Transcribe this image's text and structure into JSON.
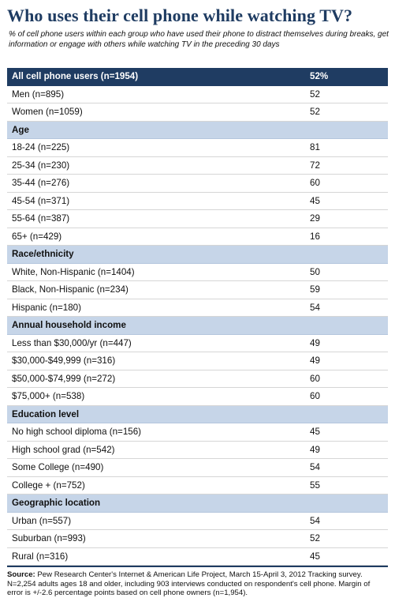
{
  "title": "Who uses their cell phone while watching TV?",
  "subtitle": "% of cell phone users within each group who have used their phone to distract themselves during breaks, get information or engage with others while watching TV in the preceding 30 days",
  "chart_data": {
    "type": "table",
    "rows": [
      {
        "kind": "total",
        "label": "All cell phone users (n=1954)",
        "value": "52%"
      },
      {
        "kind": "row",
        "label": "Men (n=895)",
        "value": "52"
      },
      {
        "kind": "row",
        "label": "Women (n=1059)",
        "value": "52"
      },
      {
        "kind": "section",
        "label": "Age",
        "value": ""
      },
      {
        "kind": "row",
        "label": "18-24 (n=225)",
        "value": "81"
      },
      {
        "kind": "row",
        "label": "25-34 (n=230)",
        "value": "72"
      },
      {
        "kind": "row",
        "label": "35-44 (n=276)",
        "value": "60"
      },
      {
        "kind": "row",
        "label": "45-54 (n=371)",
        "value": "45"
      },
      {
        "kind": "row",
        "label": "55-64 (n=387)",
        "value": "29"
      },
      {
        "kind": "row",
        "label": "65+ (n=429)",
        "value": "16"
      },
      {
        "kind": "section",
        "label": "Race/ethnicity",
        "value": ""
      },
      {
        "kind": "row",
        "label": "White, Non-Hispanic (n=1404)",
        "value": "50"
      },
      {
        "kind": "row",
        "label": "Black, Non-Hispanic (n=234)",
        "value": "59"
      },
      {
        "kind": "row",
        "label": "Hispanic (n=180)",
        "value": "54"
      },
      {
        "kind": "section",
        "label": "Annual household income",
        "value": ""
      },
      {
        "kind": "row",
        "label": "Less than $30,000/yr (n=447)",
        "value": "49"
      },
      {
        "kind": "row",
        "label": "$30,000-$49,999 (n=316)",
        "value": "49"
      },
      {
        "kind": "row",
        "label": "$50,000-$74,999 (n=272)",
        "value": "60"
      },
      {
        "kind": "row",
        "label": "$75,000+ (n=538)",
        "value": "60"
      },
      {
        "kind": "section",
        "label": "Education level",
        "value": ""
      },
      {
        "kind": "row",
        "label": "No high school diploma (n=156)",
        "value": "45"
      },
      {
        "kind": "row",
        "label": "High school grad (n=542)",
        "value": "49"
      },
      {
        "kind": "row",
        "label": "Some College (n=490)",
        "value": "54"
      },
      {
        "kind": "row",
        "label": "College + (n=752)",
        "value": "55"
      },
      {
        "kind": "section",
        "label": "Geographic location",
        "value": ""
      },
      {
        "kind": "row",
        "label": "Urban (n=557)",
        "value": "54"
      },
      {
        "kind": "row",
        "label": "Suburban (n=993)",
        "value": "52"
      },
      {
        "kind": "row",
        "label": "Rural (n=316)",
        "value": "45"
      }
    ]
  },
  "footer": {
    "source_label": "Source:",
    "source_text": " Pew Research Center's Internet & American Life Project, March 15-April 3, 2012 Tracking survey. N=2,254 adults ages 18 and older, including 903 interviews conducted on respondent's cell phone. Margin of error is +/-2.6 percentage points based on cell phone owners (n=1,954)."
  },
  "colors": {
    "header_navy": "#1f3c62",
    "section_blue": "#c6d5e8"
  }
}
